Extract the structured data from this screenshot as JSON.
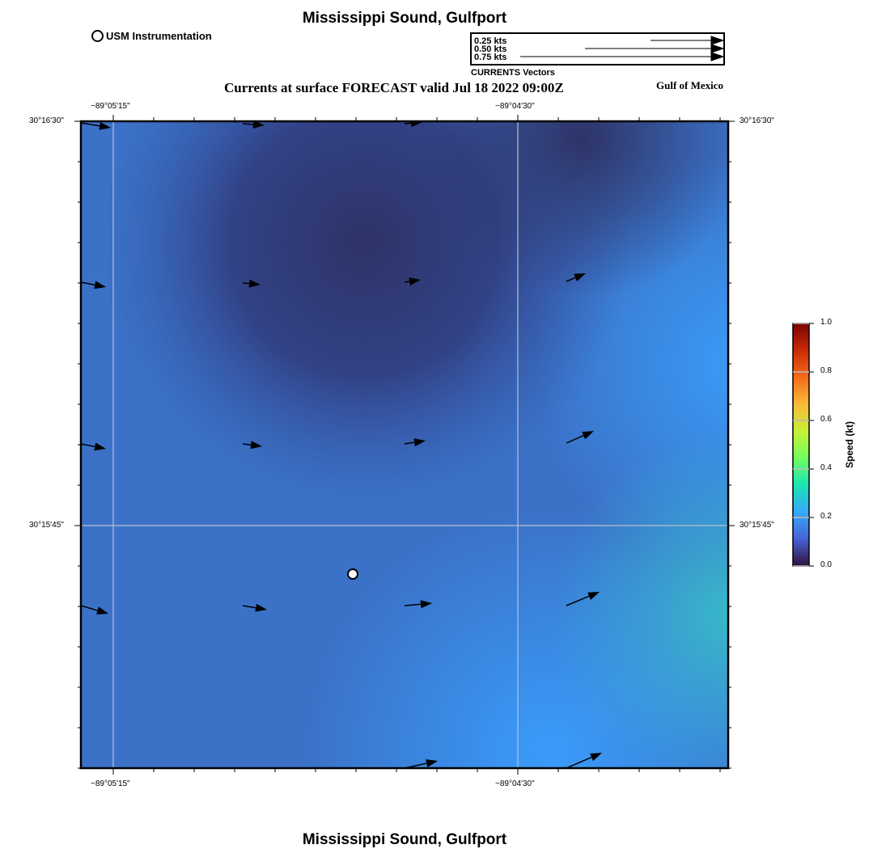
{
  "title_top": "Mississippi Sound, Gulfport",
  "title_bottom": "Mississippi Sound, Gulfport",
  "subtitle": "Currents at surface FORECAST valid Jul 18 2022 09:00Z",
  "region": "Gulf of Mexico",
  "station_legend": "USM Instrumentation",
  "vector_legend": {
    "title": "CURRENTS Vectors",
    "entries": [
      "0.25 kts",
      "0.50 kts",
      "0.75 kts"
    ]
  },
  "axes": {
    "lon_ticks": [
      "−89°05'15\"",
      "−89°04'30\""
    ],
    "lat_ticks": [
      "30°16'30\"",
      "30°15'45\""
    ]
  },
  "colorbar": {
    "label": "Speed (kt)",
    "ticks": [
      "0.0",
      "0.2",
      "0.4",
      "0.6",
      "0.8",
      "1.0"
    ],
    "colors": [
      "#30123b",
      "#4662d7",
      "#36aaf9",
      "#1ae4b6",
      "#72fe5e",
      "#c8ef34",
      "#faba39",
      "#f66b19",
      "#ca2a04",
      "#7a0403"
    ]
  }
}
